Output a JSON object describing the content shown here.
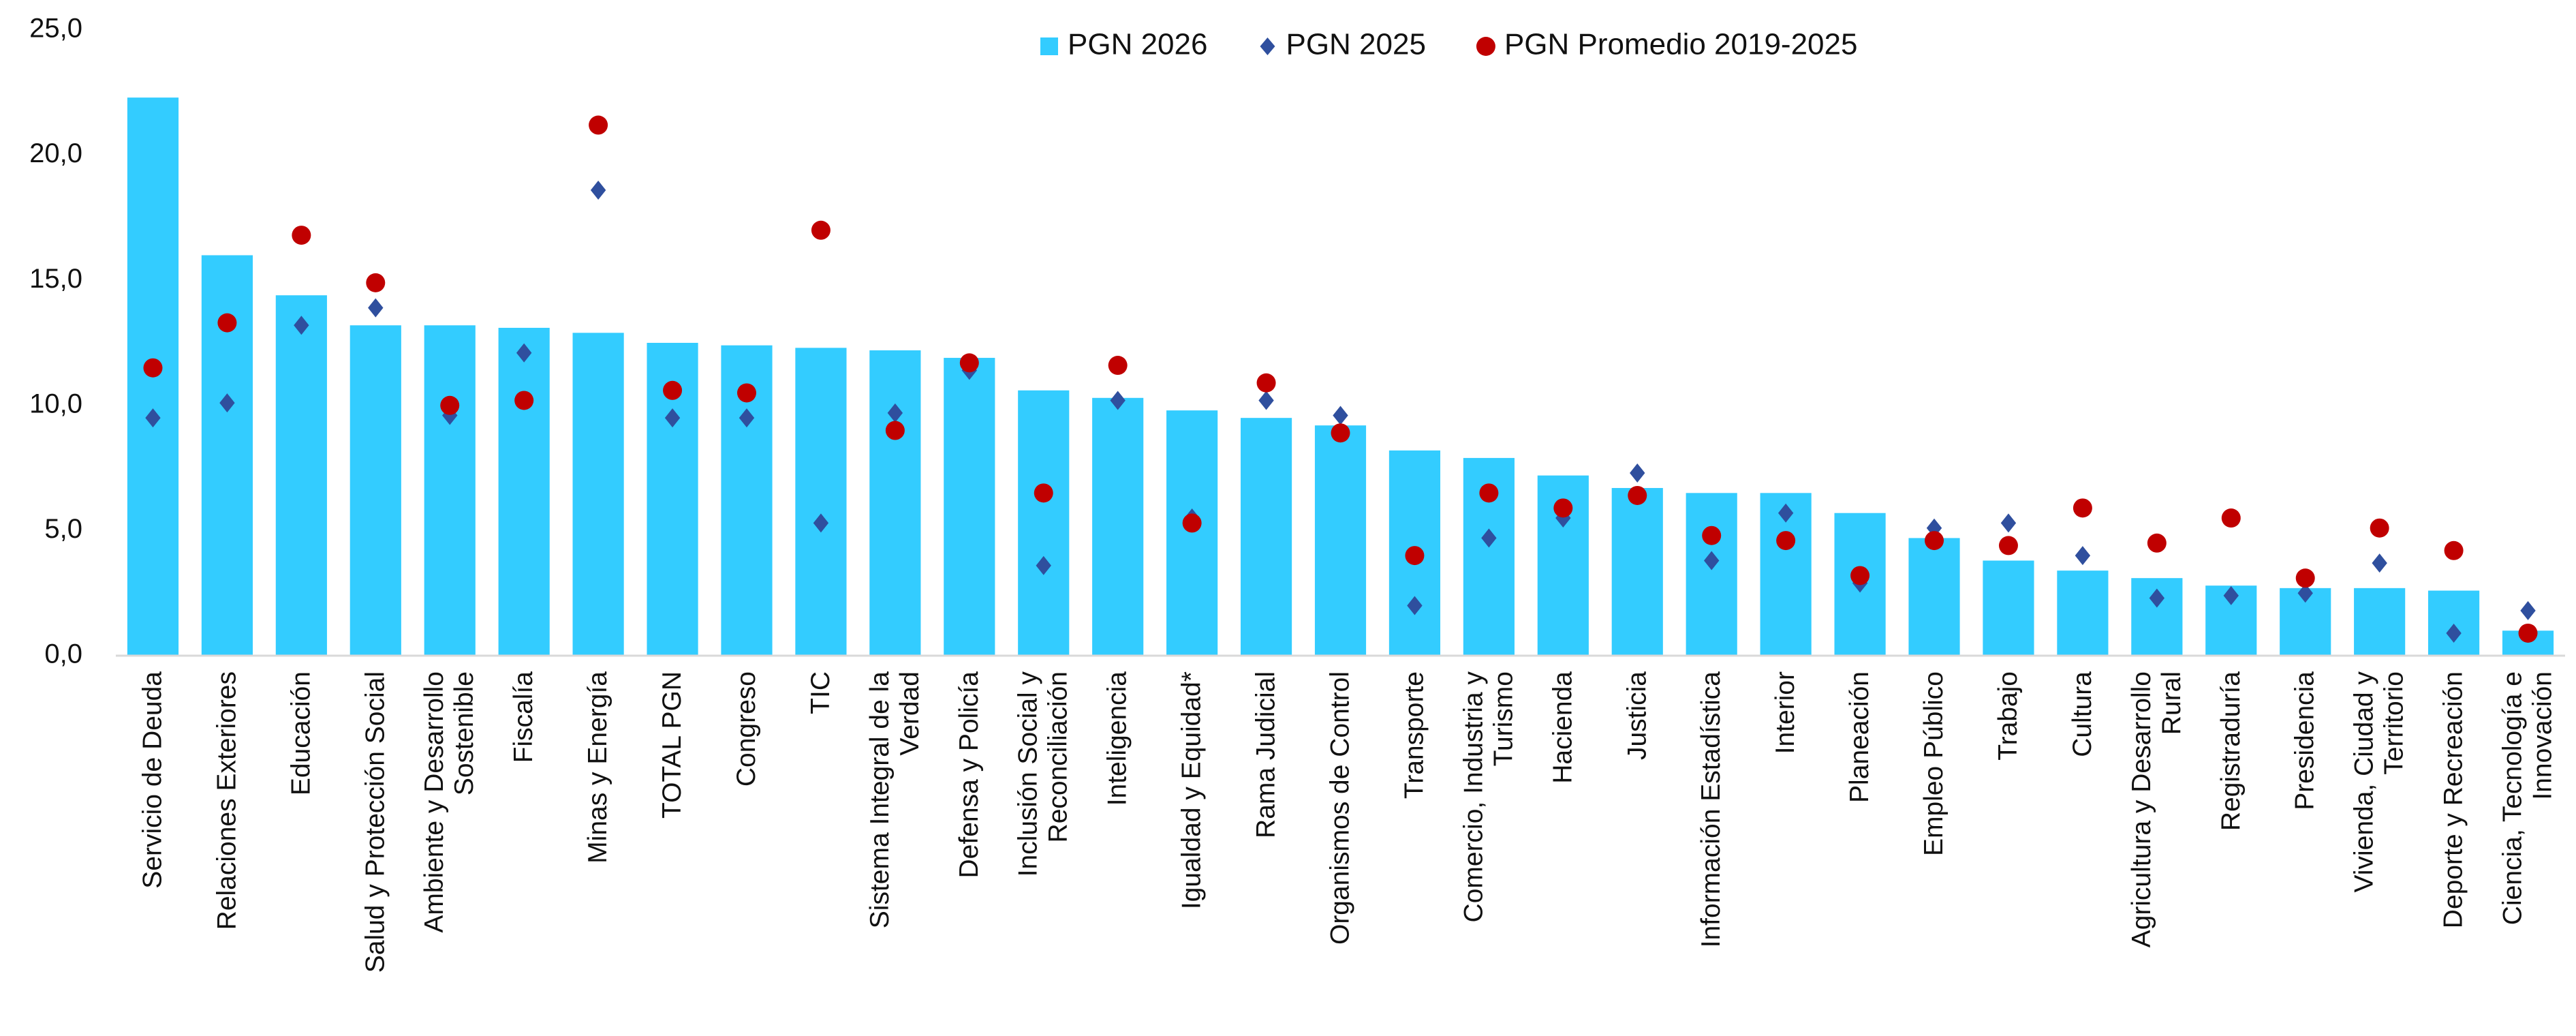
{
  "chart_data": {
    "type": "bar",
    "categories": [
      "Servicio de Deuda",
      "Relaciones Exteriores",
      "Educación",
      "Salud y Protección Social",
      "Ambiente y Desarrollo Sostenible",
      "Fiscalía",
      "Minas y Energía",
      "TOTAL PGN",
      "Congreso",
      "TIC",
      "Sistema Integral de la Verdad",
      "Defensa y Policía",
      "Inclusión Social y Reconciliación",
      "Inteligencia",
      "Igualdad y Equidad*",
      "Rama Judicial",
      "Organismos de Control",
      "Transporte",
      "Comercio, Industria y Turismo",
      "Hacienda",
      "Justicia",
      "Información Estadística",
      "Interior",
      "Planeación",
      "Empleo Público",
      "Trabajo",
      "Cultura",
      "Agricultura y Desarrollo Rural",
      "Registraduría",
      "Presidencia",
      "Vivienda, Ciudad y Territorio",
      "Deporte y Recreación",
      "Ciencia, Tecnología e Innovación"
    ],
    "series": [
      {
        "name": "PGN 2026",
        "type": "bar",
        "color": "#33ccff",
        "values": [
          22.3,
          16.0,
          14.4,
          13.2,
          13.2,
          13.1,
          12.9,
          12.5,
          12.4,
          12.3,
          12.2,
          11.9,
          10.6,
          10.3,
          9.8,
          9.5,
          9.2,
          8.2,
          7.9,
          7.2,
          6.7,
          6.5,
          6.5,
          5.7,
          4.7,
          3.8,
          3.4,
          3.1,
          2.8,
          2.7,
          2.7,
          2.6,
          1.0
        ]
      },
      {
        "name": "PGN 2025",
        "type": "scatter",
        "marker": "diamond",
        "color": "#2f4f9e",
        "values": [
          9.5,
          10.1,
          13.2,
          13.9,
          9.6,
          12.1,
          18.6,
          9.5,
          9.5,
          5.3,
          9.7,
          11.4,
          3.6,
          10.2,
          5.5,
          10.2,
          9.6,
          2.0,
          4.7,
          5.5,
          7.3,
          3.8,
          5.7,
          2.9,
          5.1,
          5.3,
          4.0,
          2.3,
          2.4,
          2.5,
          3.7,
          0.9,
          1.8
        ]
      },
      {
        "name": "PGN Promedio 2019-2025",
        "type": "scatter",
        "marker": "circle",
        "color": "#c00000",
        "values": [
          11.5,
          13.3,
          16.8,
          14.9,
          10.0,
          10.2,
          21.2,
          10.6,
          10.5,
          17.0,
          9.0,
          11.7,
          6.5,
          11.6,
          5.3,
          10.9,
          8.9,
          4.0,
          6.5,
          5.9,
          6.4,
          4.8,
          4.6,
          3.2,
          4.6,
          4.4,
          5.9,
          4.5,
          5.5,
          3.1,
          5.1,
          4.2,
          0.9
        ]
      }
    ],
    "ylim": [
      0,
      25
    ],
    "yticks": [
      {
        "value": 0,
        "label": "0,0"
      },
      {
        "value": 5,
        "label": "5,0"
      },
      {
        "value": 10,
        "label": "10,0"
      },
      {
        "value": 15,
        "label": "15,0"
      },
      {
        "value": 20,
        "label": "20,0"
      },
      {
        "value": 25,
        "label": "25,0"
      }
    ],
    "grid": false,
    "legend": "top"
  }
}
